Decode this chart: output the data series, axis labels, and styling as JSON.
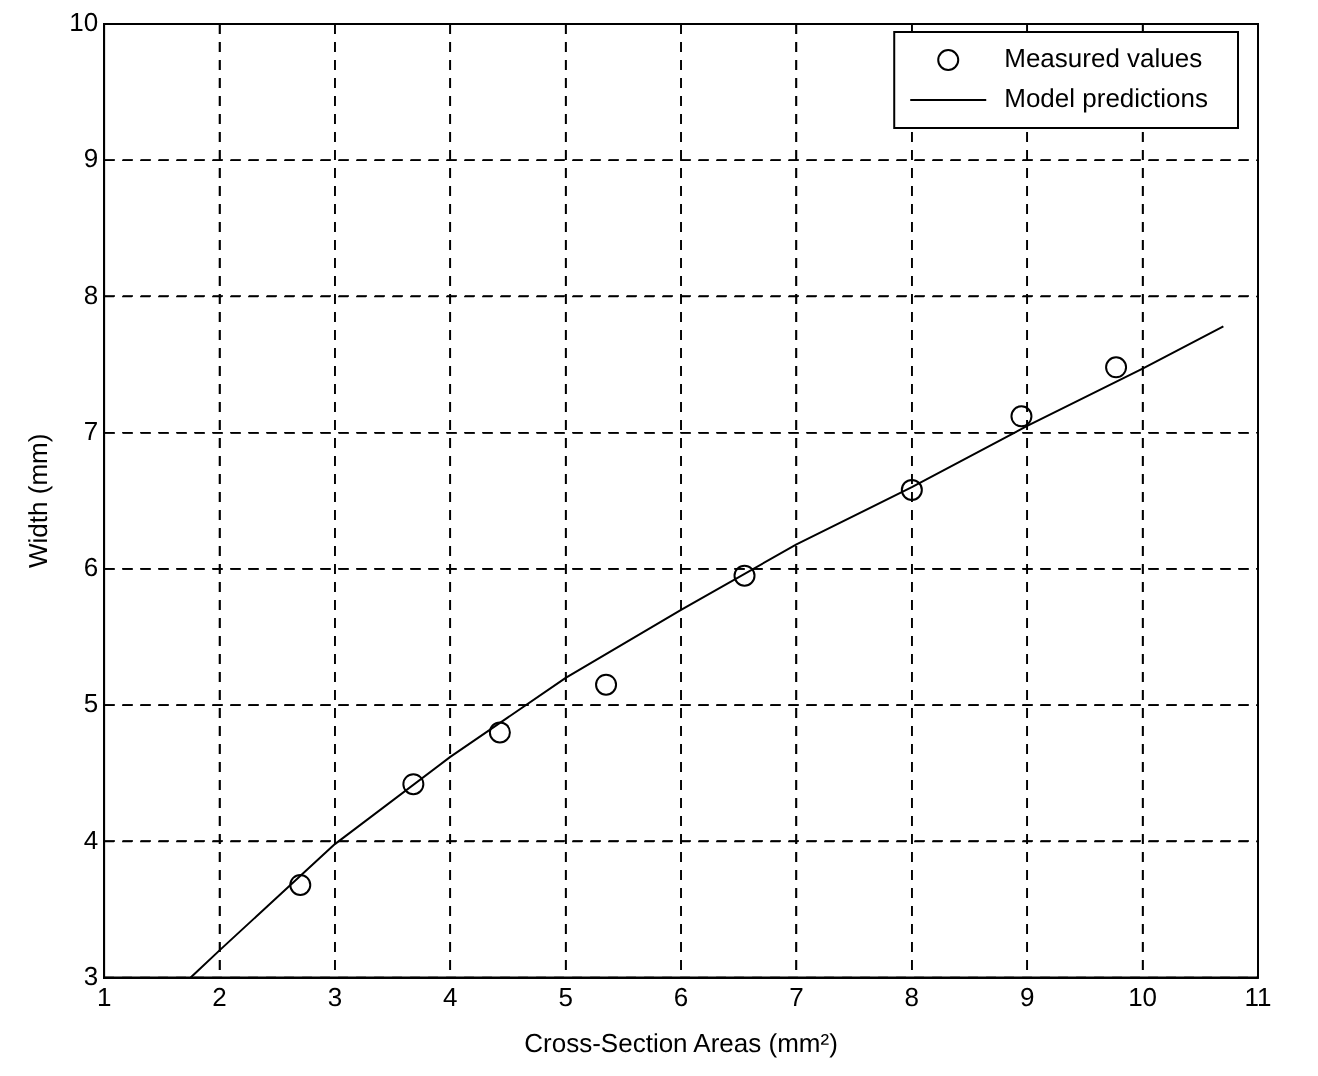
{
  "chart_data": {
    "type": "scatter",
    "xlabel": "Cross-Section Areas (mm²)",
    "ylabel": "Width (mm)",
    "xlim": [
      1,
      11
    ],
    "xticks": [
      1,
      2,
      3,
      4,
      5,
      6,
      7,
      8,
      9,
      10,
      11
    ],
    "ylim": [
      3,
      10
    ],
    "yticks": [
      3,
      4,
      5,
      6,
      7,
      8,
      9,
      10
    ],
    "grid": true,
    "legend": "top right",
    "series": [
      {
        "name": "Measured values",
        "type": "scatter",
        "marker": "circle",
        "color": "#000000",
        "x": [
          2.7,
          3.68,
          4.43,
          5.35,
          6.55,
          8.0,
          8.95,
          9.77
        ],
        "values": [
          3.68,
          4.42,
          4.8,
          5.15,
          5.95,
          6.58,
          7.12,
          7.48
        ]
      },
      {
        "name": "Model predictions",
        "type": "line",
        "marker": "none",
        "line_style": "solid",
        "color": "#000000",
        "x": [
          1.75,
          2,
          3,
          4,
          5,
          6,
          7,
          8,
          9,
          10,
          10.7
        ],
        "values": [
          3.0,
          3.2,
          3.98,
          4.62,
          5.2,
          5.7,
          6.18,
          6.6,
          7.05,
          7.47,
          7.78
        ]
      }
    ]
  }
}
